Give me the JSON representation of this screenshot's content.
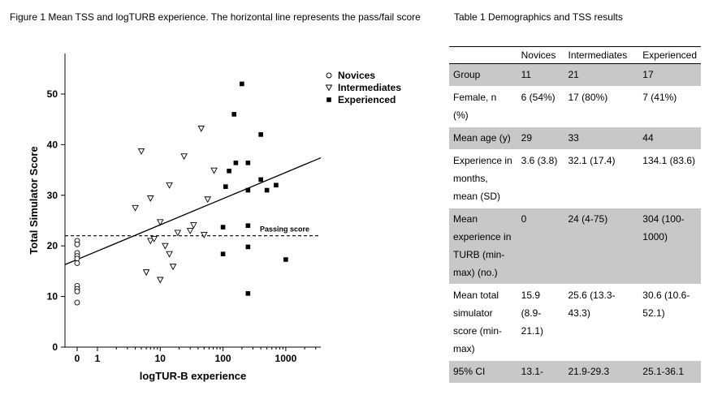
{
  "figure": {
    "caption": "Figure 1 Mean TSS and logTURB experience. The horizontal line represents the pass/fail score"
  },
  "chart_data": {
    "type": "scatter",
    "title": "",
    "xlabel": "logTUR-B experience",
    "ylabel": "Total Simulator Score",
    "x_scale": "log",
    "x_ticks": [
      "0",
      "1",
      "10",
      "100",
      "1000"
    ],
    "y_ticks": [
      "0",
      "10",
      "20",
      "30",
      "40",
      "50"
    ],
    "ylim": [
      0,
      58
    ],
    "legend_position": "top-right",
    "series": [
      {
        "name": "Novices",
        "marker": "circle",
        "points": [
          [
            0,
            21.0
          ],
          [
            0,
            20.3
          ],
          [
            0,
            18.6
          ],
          [
            0,
            18.0
          ],
          [
            0,
            17.5
          ],
          [
            0,
            16.6
          ],
          [
            0,
            12.1
          ],
          [
            0,
            11.5
          ],
          [
            0,
            11.0
          ],
          [
            0,
            8.8
          ]
        ]
      },
      {
        "name": "Intermediates",
        "marker": "triangle-down",
        "points": [
          [
            4,
            27.5
          ],
          [
            5,
            38.7
          ],
          [
            6,
            14.8
          ],
          [
            7,
            29.4
          ],
          [
            7,
            21.0
          ],
          [
            8,
            21.4
          ],
          [
            10,
            24.7
          ],
          [
            10,
            13.3
          ],
          [
            12,
            20.0
          ],
          [
            14,
            32.0
          ],
          [
            14,
            18.4
          ],
          [
            16,
            15.9
          ],
          [
            19,
            22.6
          ],
          [
            24,
            37.7
          ],
          [
            30,
            23.0
          ],
          [
            34,
            24.1
          ],
          [
            45,
            43.2
          ],
          [
            50,
            22.2
          ],
          [
            57,
            29.2
          ],
          [
            72,
            34.9
          ]
        ]
      },
      {
        "name": "Experienced",
        "marker": "square",
        "points": [
          [
            100,
            18.4
          ],
          [
            100,
            23.7
          ],
          [
            110,
            31.7
          ],
          [
            125,
            34.8
          ],
          [
            150,
            46.0
          ],
          [
            160,
            36.4
          ],
          [
            200,
            52.0
          ],
          [
            250,
            36.4
          ],
          [
            250,
            31.0
          ],
          [
            250,
            24.0
          ],
          [
            250,
            19.8
          ],
          [
            250,
            10.6
          ],
          [
            400,
            42.0
          ],
          [
            400,
            33.1
          ],
          [
            500,
            31.0
          ],
          [
            700,
            32.0
          ],
          [
            1000,
            17.3
          ]
        ]
      }
    ],
    "trend_line": {
      "x": [
        0.3,
        3000
      ],
      "y": [
        16.3,
        37.4
      ]
    },
    "passing_score": {
      "value": 22,
      "label": "Passing score"
    }
  },
  "table": {
    "caption": "Table 1 Demographics and TSS results",
    "headers": [
      "",
      "Novices",
      "Intermediates",
      "Experienced"
    ],
    "rows": [
      [
        "Group",
        "11",
        "21",
        "17"
      ],
      [
        "Female, n (%)",
        "6 (54%)",
        "17 (80%)",
        "7 (41%)"
      ],
      [
        "Mean age (y)",
        "29",
        "33",
        "44"
      ],
      [
        "Experience in months, mean (SD)",
        "3.6 (3.8)",
        "32.1 (17.4)",
        "134.1 (83.6)"
      ],
      [
        "Mean experience in TURB (min-max) (no.)",
        "0",
        "24 (4-75)",
        "304 (100-1000)"
      ],
      [
        "Mean total simulator score (min-max)",
        "15.9 (8.9-21.1)",
        "25.6 (13.3-43.3)",
        "30.6 (10.6-52.1)"
      ],
      [
        "95% CI",
        "13.1-",
        "21.9-29.3",
        "25.1-36.1"
      ]
    ]
  }
}
